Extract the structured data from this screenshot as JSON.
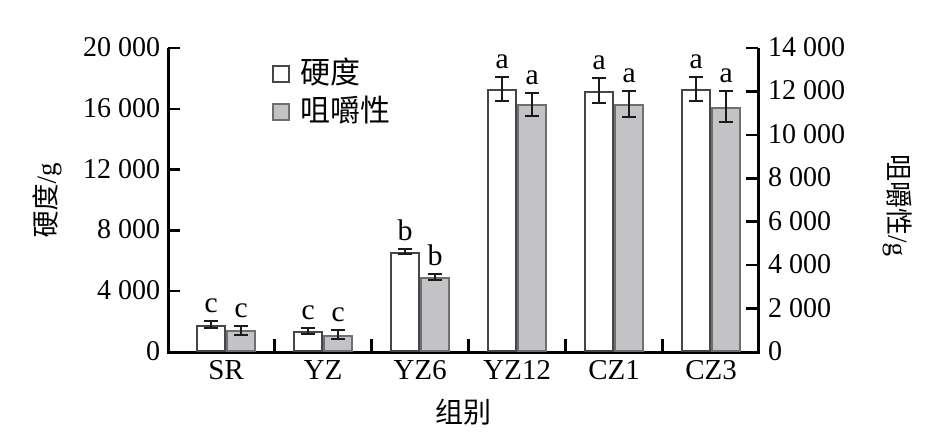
{
  "chart_data": {
    "type": "bar",
    "title": "",
    "xlabel": "组别",
    "categories": [
      "SR",
      "YZ",
      "YZ6",
      "YZ12",
      "CZ1",
      "CZ3"
    ],
    "series": [
      {
        "name": "硬度",
        "axis": "left",
        "fill": "#ffffff",
        "border": "#464646",
        "values": [
          1800,
          1400,
          6600,
          17300,
          17200,
          17300
        ],
        "errors": [
          250,
          200,
          150,
          800,
          800,
          800
        ],
        "letters": [
          "c",
          "c",
          "b",
          "a",
          "a",
          "a"
        ]
      },
      {
        "name": "咀嚼性",
        "axis": "right",
        "fill": "#c3c3c6",
        "border": "#6e6e73",
        "values": [
          1000,
          800,
          3450,
          11400,
          11400,
          11300
        ],
        "errors": [
          200,
          200,
          150,
          550,
          600,
          700
        ],
        "letters": [
          "c",
          "c",
          "b",
          "a",
          "a",
          "a"
        ]
      }
    ],
    "left_axis": {
      "label": "硬度/g",
      "min": 0,
      "max": 20000,
      "tick_values": [
        0,
        4000,
        8000,
        12000,
        16000,
        20000
      ],
      "tick_labels": [
        "0",
        "4 000",
        "8 000",
        "12 000",
        "16 000",
        "20 000"
      ]
    },
    "right_axis": {
      "label": "咀嚼性/g",
      "min": 0,
      "max": 14000,
      "tick_values": [
        0,
        2000,
        4000,
        6000,
        8000,
        10000,
        12000,
        14000
      ],
      "tick_labels": [
        "0",
        "2 000",
        "4 000",
        "6 000",
        "8 000",
        "10 000",
        "12 000",
        "14 000"
      ]
    },
    "legend": [
      {
        "label": "硬度",
        "fill": "#ffffff"
      },
      {
        "label": "咀嚼性",
        "fill": "#c3c3c6"
      }
    ],
    "grid": false,
    "legend_position": "upper-left-inside"
  }
}
